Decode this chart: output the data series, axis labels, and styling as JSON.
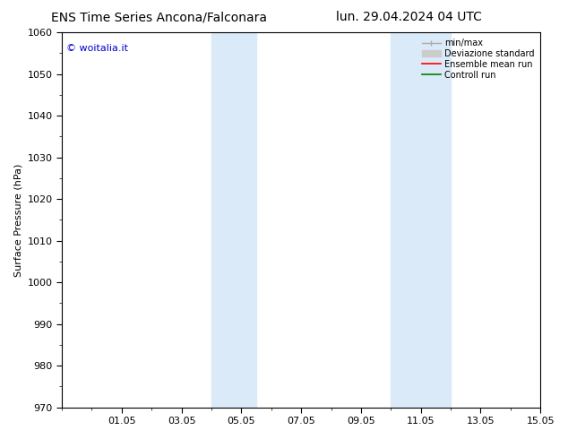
{
  "title_left": "ENS Time Series Ancona/Falconara",
  "title_right": "lun. 29.04.2024 04 UTC",
  "ylabel": "Surface Pressure (hPa)",
  "ylim": [
    970,
    1060
  ],
  "yticks": [
    970,
    980,
    990,
    1000,
    1010,
    1020,
    1030,
    1040,
    1050,
    1060
  ],
  "xlim": [
    0,
    16
  ],
  "xtick_labels": [
    "01.05",
    "03.05",
    "05.05",
    "07.05",
    "09.05",
    "11.05",
    "13.05",
    "15.05"
  ],
  "xtick_positions": [
    2,
    4,
    6,
    8,
    10,
    12,
    14,
    16
  ],
  "shaded_bands": [
    {
      "x_start": 5.0,
      "x_end": 6.5
    },
    {
      "x_start": 11.0,
      "x_end": 13.0
    }
  ],
  "shaded_color": "#daeaf8",
  "watermark_text": "© woitalia.it",
  "watermark_color": "#0000cc",
  "bg_color": "#ffffff",
  "spine_color": "#000000",
  "title_fontsize": 10,
  "ylabel_fontsize": 8,
  "tick_fontsize": 8,
  "watermark_fontsize": 8,
  "legend_fontsize": 7
}
